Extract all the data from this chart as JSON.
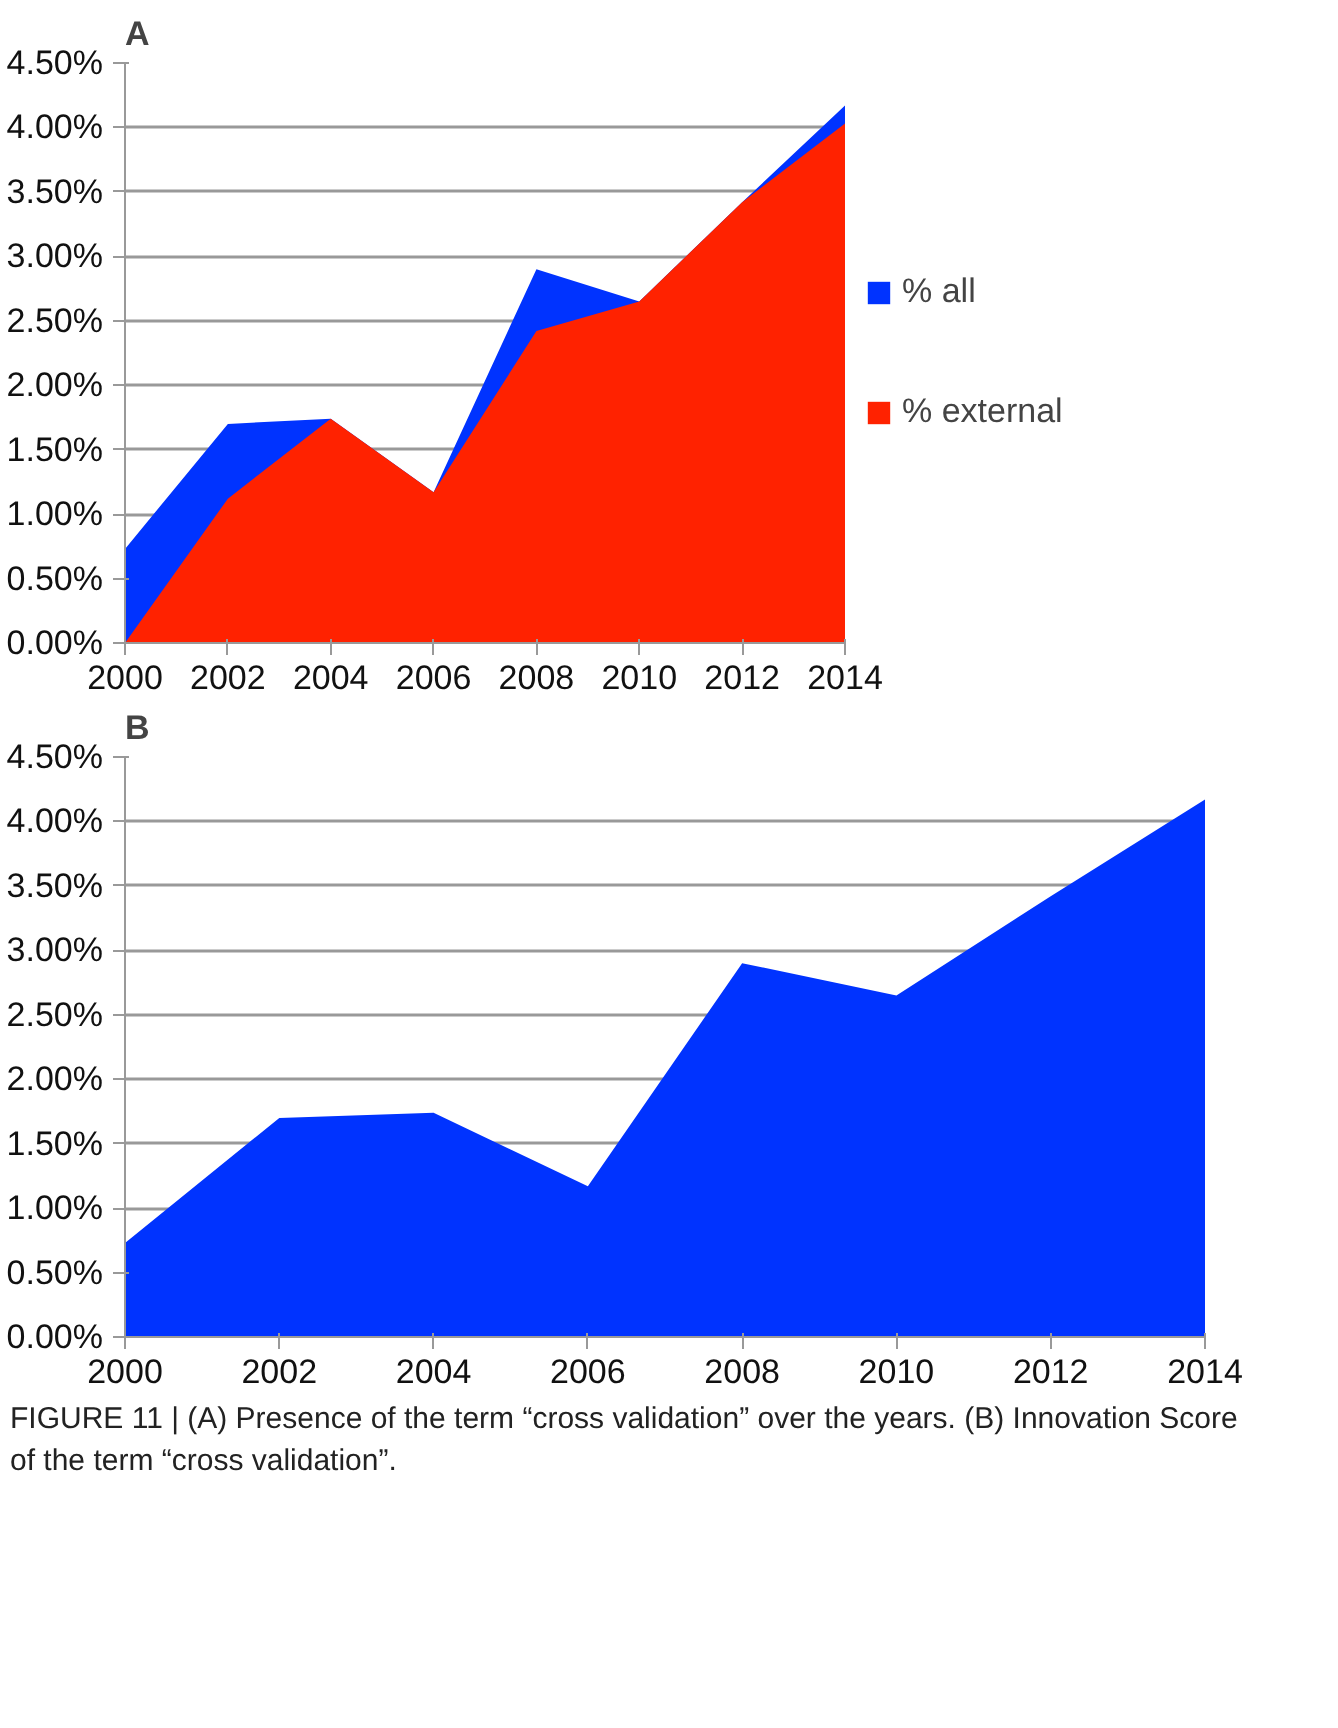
{
  "chart_data": [
    {
      "type": "area",
      "title": "A",
      "x": [
        2000,
        2002,
        2004,
        2006,
        2008,
        2010,
        2012,
        2014
      ],
      "xlim": [
        2000,
        2014
      ],
      "xticks": [
        2000,
        2002,
        2004,
        2006,
        2008,
        2010,
        2012,
        2014
      ],
      "ylim": [
        0,
        4.5
      ],
      "yticks": [
        {
          "value": 0,
          "label": "0.00%"
        },
        {
          "value": 0.5,
          "label": "0.50%"
        },
        {
          "value": 1,
          "label": "1.00%"
        },
        {
          "value": 1.5,
          "label": "1.50%"
        },
        {
          "value": 2,
          "label": "2.00%"
        },
        {
          "value": 2.5,
          "label": "2.50%"
        },
        {
          "value": 3,
          "label": "3.00%"
        },
        {
          "value": 3.5,
          "label": "3.50%"
        },
        {
          "value": 4,
          "label": "4.00%"
        },
        {
          "value": 4.5,
          "label": "4.50%"
        }
      ],
      "grid": "y",
      "legend": "right",
      "series": [
        {
          "name": "% all",
          "color": "#0033ff",
          "values": [
            0.73,
            1.7,
            1.74,
            1.17,
            2.9,
            2.65,
            3.42,
            4.17
          ]
        },
        {
          "name": "% external",
          "color": "#ff2200",
          "values": [
            0.0,
            1.12,
            1.74,
            1.17,
            2.42,
            2.65,
            3.42,
            4.03
          ]
        }
      ]
    },
    {
      "type": "area",
      "title": "B",
      "x": [
        2000,
        2002,
        2004,
        2006,
        2008,
        2010,
        2012,
        2014
      ],
      "xlim": [
        2000,
        2014
      ],
      "xticks": [
        2000,
        2002,
        2004,
        2006,
        2008,
        2010,
        2012,
        2014
      ],
      "ylim": [
        0,
        4.5
      ],
      "yticks": [
        {
          "value": 0,
          "label": "0.00%"
        },
        {
          "value": 0.5,
          "label": "0.50%"
        },
        {
          "value": 1,
          "label": "1.00%"
        },
        {
          "value": 1.5,
          "label": "1.50%"
        },
        {
          "value": 2,
          "label": "2.00%"
        },
        {
          "value": 2.5,
          "label": "2.50%"
        },
        {
          "value": 3,
          "label": "3.00%"
        },
        {
          "value": 3.5,
          "label": "3.50%"
        },
        {
          "value": 4,
          "label": "4.00%"
        },
        {
          "value": 4.5,
          "label": "4.50%"
        }
      ],
      "grid": "y",
      "series": [
        {
          "color": "#0033ff",
          "values": [
            0.73,
            1.7,
            1.74,
            1.17,
            2.9,
            2.65,
            3.42,
            4.17
          ]
        }
      ],
      "annotations": [
        "FIGURE 11 | (A) Presence of the term “cross validation” over the years. (B) Innovation Score of the term “cross validation”."
      ]
    }
  ]
}
